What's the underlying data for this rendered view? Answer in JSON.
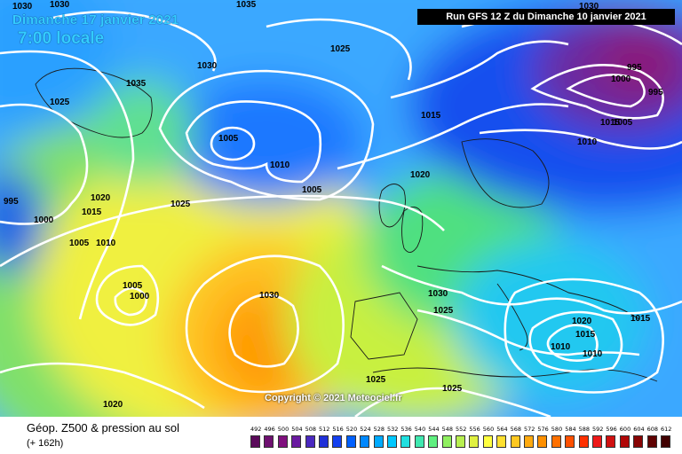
{
  "map": {
    "date_line": "Dimanche 17 janvier 2021",
    "time_line": "7:00 locale",
    "run_info": "Run GFS 12 Z du Dimanche 10 janvier 2021",
    "copyright": "Copyright © 2021 Meteociel.fr",
    "isobar_labels": [
      "1030",
      "1035",
      "1030",
      "1025",
      "1030",
      "1035",
      "1025",
      "1005",
      "1010",
      "1005",
      "1015",
      "1020",
      "1025",
      "1020",
      "1015",
      "1000",
      "995",
      "1005",
      "1010",
      "1005",
      "1000",
      "1030",
      "1025",
      "1030",
      "1025",
      "1025",
      "1020",
      "1015",
      "1015",
      "1010",
      "1010",
      "1020",
      "1015",
      "1030",
      "995",
      "1000",
      "995",
      "1005",
      "1010"
    ],
    "colors": {
      "contour_line": "#ffffff",
      "high_core": "#ff9900",
      "low_core": "#1a1aa0"
    }
  },
  "footer": {
    "title": "Géop. Z500 & pression au sol",
    "subtitle": "(+ 162h)"
  },
  "legend": {
    "labels": [
      "492",
      "496",
      "500",
      "504",
      "508",
      "512",
      "516",
      "520",
      "524",
      "528",
      "532",
      "536",
      "540",
      "544",
      "548",
      "552",
      "556",
      "560",
      "564",
      "568",
      "572",
      "576",
      "580",
      "584",
      "588",
      "592",
      "596",
      "600",
      "604",
      "608",
      "612"
    ],
    "colors": [
      "#5a0a5a",
      "#6e1070",
      "#80107e",
      "#6a1aa0",
      "#4a28c0",
      "#2030d8",
      "#1440f0",
      "#0060ff",
      "#0088ff",
      "#00aaff",
      "#00c8ff",
      "#20e0e0",
      "#40e8b0",
      "#60f080",
      "#90f060",
      "#b8f050",
      "#e0f040",
      "#ffff40",
      "#ffe030",
      "#ffc820",
      "#ffaa10",
      "#ff9000",
      "#ff7000",
      "#ff5000",
      "#ff3000",
      "#ee1818",
      "#d01010",
      "#b00808",
      "#880404",
      "#600202",
      "#400000"
    ]
  }
}
